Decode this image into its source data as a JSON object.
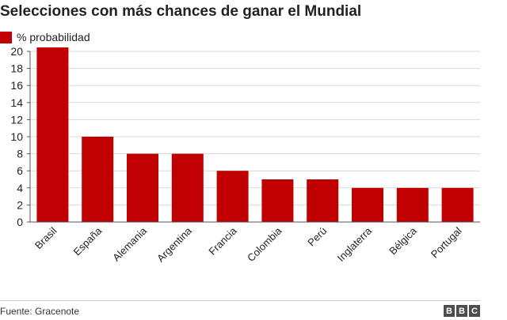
{
  "title": "Selecciones con más chances de ganar el Mundial",
  "legend_label": "% probabilidad",
  "source": "Fuente: Gracenote",
  "logo_letters": [
    "B",
    "B",
    "C"
  ],
  "colors": {
    "bar": "#c00000",
    "grid": "#d9d9d9",
    "axis": "#555555"
  },
  "chart_data": {
    "type": "bar",
    "title": "Selecciones con más chances de ganar el Mundial",
    "xlabel": "",
    "ylabel": "",
    "ylim": [
      0,
      20
    ],
    "yticks": [
      0,
      2,
      4,
      6,
      8,
      10,
      12,
      14,
      16,
      18,
      20
    ],
    "grid": true,
    "legend_position": "top-left",
    "categories": [
      "Brasil",
      "España",
      "Alemania",
      "Argentina",
      "Francia",
      "Colombia",
      "Perú",
      "Inglaterra",
      "Bélgica",
      "Portugal"
    ],
    "series": [
      {
        "name": "% probabilidad",
        "values": [
          21,
          10,
          8,
          8,
          6,
          5,
          5,
          4,
          4,
          4
        ]
      }
    ]
  }
}
